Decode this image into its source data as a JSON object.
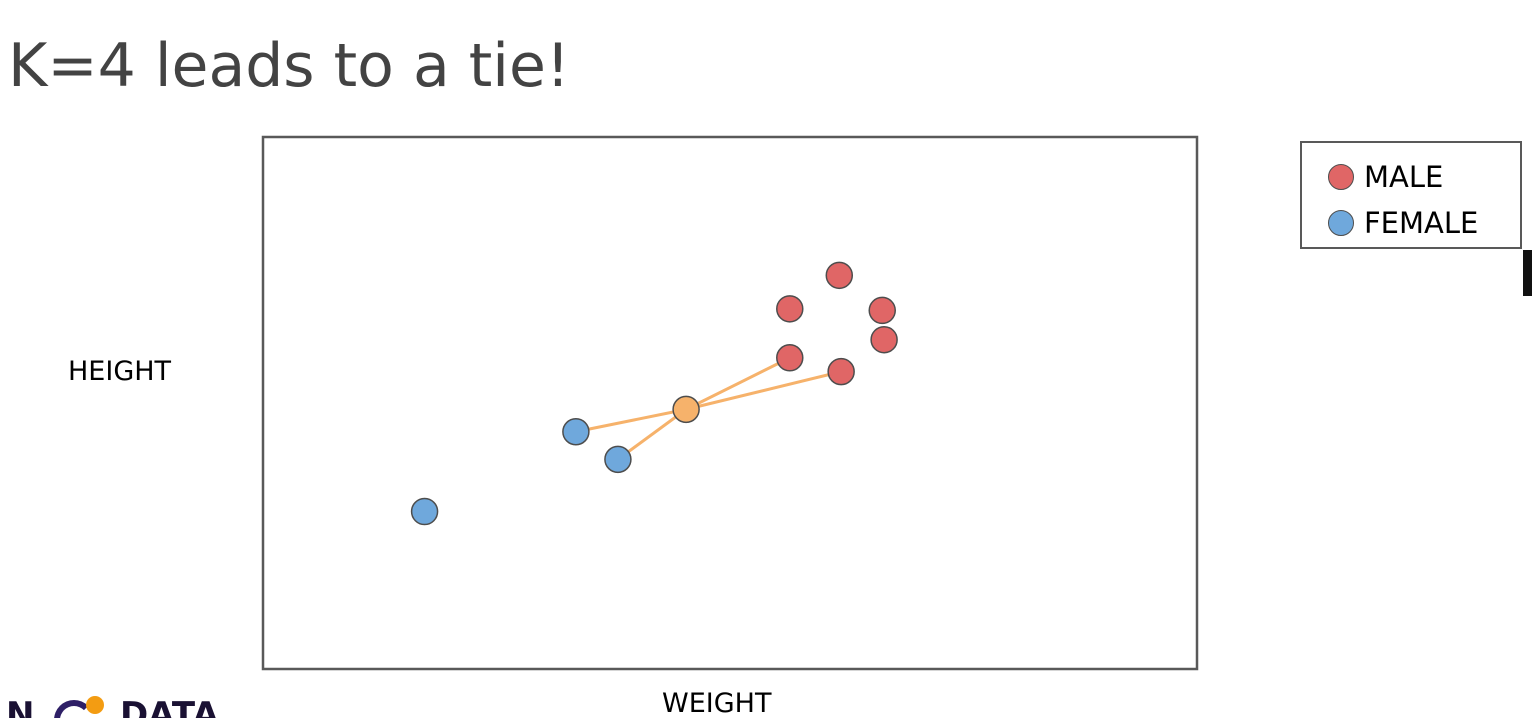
{
  "slide": {
    "title": "K=4 leads to a tie!"
  },
  "colors": {
    "male": "#e06666",
    "female": "#6fa8dc",
    "query": "#f6b26b",
    "neighbor_line": "#f6b26b",
    "marker_edge": "#4d4d4d",
    "frame": "#595959"
  },
  "chart_data": {
    "type": "scatter",
    "xlabel": "WEIGHT",
    "ylabel": "HEIGHT",
    "xlim": [
      0,
      100
    ],
    "ylim": [
      0,
      100
    ],
    "grid": false,
    "ticks": false,
    "legend": {
      "placement": "outside-right-top",
      "entries": [
        {
          "label": "MALE",
          "color": "#e06666"
        },
        {
          "label": "FEMALE",
          "color": "#6fa8dc"
        }
      ]
    },
    "series": [
      {
        "name": "MALE",
        "color": "#e06666",
        "points": [
          {
            "x": 66.3,
            "y": 67.4
          },
          {
            "x": 61.7,
            "y": 74.0
          },
          {
            "x": 66.5,
            "y": 61.9
          },
          {
            "x": 56.4,
            "y": 67.7
          },
          {
            "x": 56.4,
            "y": 58.5
          },
          {
            "x": 61.9,
            "y": 55.9
          }
        ]
      },
      {
        "name": "FEMALE",
        "color": "#6fa8dc",
        "points": [
          {
            "x": 33.5,
            "y": 44.6
          },
          {
            "x": 38.0,
            "y": 39.4
          },
          {
            "x": 17.3,
            "y": 29.6
          }
        ]
      }
    ],
    "query_point": {
      "x": 45.3,
      "y": 48.8,
      "color": "#f6b26b"
    },
    "neighbors": [
      {
        "x": 56.4,
        "y": 58.5
      },
      {
        "x": 61.9,
        "y": 55.9
      },
      {
        "x": 33.5,
        "y": 44.6
      },
      {
        "x": 38.0,
        "y": 39.4
      }
    ]
  },
  "logo": {
    "text_left": "N",
    "text_right": "DATA"
  }
}
